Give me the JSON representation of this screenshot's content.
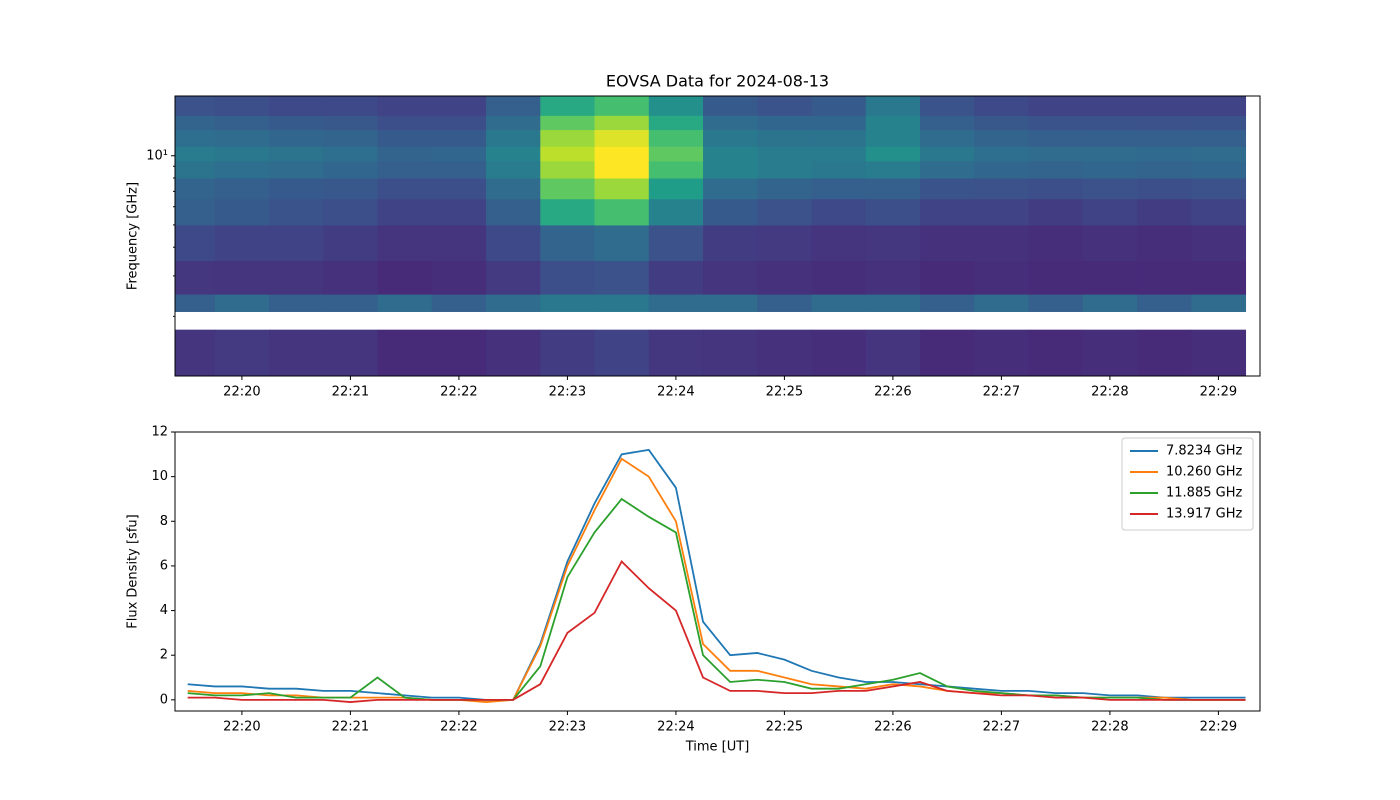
{
  "chart_data": [
    {
      "type": "heatmap",
      "title": "EOVSA Data for 2024-08-13",
      "ylabel": "Frequency [GHz]",
      "colormap": "viridis",
      "ylog": true,
      "xlim": [
        "22:19:23",
        "22:29:23"
      ],
      "xticks": [
        "22:20",
        "22:21",
        "22:22",
        "22:23",
        "22:24",
        "22:25",
        "22:26",
        "22:27",
        "22:28",
        "22:29"
      ],
      "ylim": [
        1.1,
        18.2
      ],
      "yticks": [
        {
          "value": 10,
          "label": "10¹"
        }
      ],
      "yminorticks": [
        2,
        3,
        4,
        5,
        6,
        7,
        8,
        9
      ],
      "x": [
        "22:19:30",
        "22:20:00",
        "22:20:30",
        "22:21:00",
        "22:21:30",
        "22:22:00",
        "22:22:30",
        "22:23:00",
        "22:23:30",
        "22:24:00",
        "22:24:30",
        "22:25:00",
        "22:25:30",
        "22:26:00",
        "22:26:30",
        "22:27:00",
        "22:27:30",
        "22:28:00",
        "22:28:30",
        "22:29:00"
      ],
      "y_bins": [
        1.1,
        1.75,
        2.1,
        2.5,
        3.5,
        5,
        6.5,
        8,
        9.5,
        11,
        13,
        15,
        18.2
      ],
      "zlim": [
        0,
        1
      ],
      "z": [
        [
          0.15,
          0.17,
          0.15,
          0.15,
          0.12,
          0.12,
          0.14,
          0.18,
          0.2,
          0.16,
          0.15,
          0.14,
          0.13,
          0.15,
          0.12,
          0.13,
          0.12,
          0.13,
          0.12,
          0.13
        ],
        [
          null,
          null,
          null,
          null,
          null,
          null,
          null,
          null,
          null,
          null,
          null,
          null,
          null,
          null,
          null,
          null,
          null,
          null,
          null,
          null
        ],
        [
          0.3,
          0.35,
          0.3,
          0.3,
          0.35,
          0.3,
          0.35,
          0.4,
          0.4,
          0.35,
          0.35,
          0.3,
          0.35,
          0.35,
          0.3,
          0.35,
          0.3,
          0.35,
          0.3,
          0.35
        ],
        [
          0.16,
          0.15,
          0.15,
          0.14,
          0.12,
          0.13,
          0.17,
          0.24,
          0.25,
          0.18,
          0.15,
          0.14,
          0.13,
          0.14,
          0.12,
          0.13,
          0.12,
          0.12,
          0.12,
          0.12
        ],
        [
          0.22,
          0.2,
          0.2,
          0.18,
          0.15,
          0.15,
          0.22,
          0.32,
          0.35,
          0.25,
          0.18,
          0.17,
          0.15,
          0.16,
          0.14,
          0.14,
          0.13,
          0.14,
          0.13,
          0.14
        ],
        [
          0.3,
          0.28,
          0.26,
          0.24,
          0.2,
          0.2,
          0.3,
          0.6,
          0.7,
          0.45,
          0.28,
          0.25,
          0.22,
          0.24,
          0.2,
          0.2,
          0.18,
          0.2,
          0.18,
          0.2
        ],
        [
          0.32,
          0.3,
          0.28,
          0.27,
          0.24,
          0.24,
          0.35,
          0.75,
          0.85,
          0.55,
          0.35,
          0.32,
          0.3,
          0.3,
          0.26,
          0.25,
          0.24,
          0.25,
          0.24,
          0.25
        ],
        [
          0.38,
          0.36,
          0.35,
          0.33,
          0.3,
          0.3,
          0.42,
          0.85,
          1.0,
          0.7,
          0.45,
          0.42,
          0.4,
          0.42,
          0.35,
          0.33,
          0.32,
          0.33,
          0.32,
          0.33
        ],
        [
          0.42,
          0.4,
          0.38,
          0.36,
          0.32,
          0.33,
          0.45,
          0.9,
          1.0,
          0.75,
          0.45,
          0.42,
          0.42,
          0.5,
          0.4,
          0.36,
          0.35,
          0.35,
          0.34,
          0.35
        ],
        [
          0.36,
          0.35,
          0.33,
          0.32,
          0.28,
          0.28,
          0.4,
          0.85,
          0.95,
          0.7,
          0.4,
          0.38,
          0.38,
          0.45,
          0.35,
          0.32,
          0.3,
          0.3,
          0.3,
          0.3
        ],
        [
          0.32,
          0.3,
          0.28,
          0.27,
          0.24,
          0.24,
          0.35,
          0.75,
          0.85,
          0.6,
          0.35,
          0.33,
          0.33,
          0.45,
          0.3,
          0.27,
          0.26,
          0.26,
          0.25,
          0.26
        ],
        [
          0.25,
          0.24,
          0.22,
          0.22,
          0.2,
          0.2,
          0.3,
          0.6,
          0.7,
          0.5,
          0.28,
          0.26,
          0.28,
          0.4,
          0.26,
          0.22,
          0.2,
          0.2,
          0.2,
          0.2
        ]
      ]
    },
    {
      "type": "line",
      "xlabel": "Time [UT]",
      "ylabel": "Flux Density [sfu]",
      "legend": "upper right",
      "xlim": [
        "22:19:23",
        "22:29:23"
      ],
      "xticks": [
        "22:20",
        "22:21",
        "22:22",
        "22:23",
        "22:24",
        "22:25",
        "22:26",
        "22:27",
        "22:28",
        "22:29"
      ],
      "ylim": [
        -0.5,
        12
      ],
      "yticks": [
        0,
        2,
        4,
        6,
        8,
        10,
        12
      ],
      "x": [
        "22:19:30",
        "22:19:45",
        "22:20:00",
        "22:20:15",
        "22:20:30",
        "22:20:45",
        "22:21:00",
        "22:21:15",
        "22:21:30",
        "22:21:45",
        "22:22:00",
        "22:22:15",
        "22:22:30",
        "22:22:45",
        "22:23:00",
        "22:23:15",
        "22:23:30",
        "22:23:45",
        "22:24:00",
        "22:24:15",
        "22:24:30",
        "22:24:45",
        "22:25:00",
        "22:25:15",
        "22:25:30",
        "22:25:45",
        "22:26:00",
        "22:26:15",
        "22:26:30",
        "22:26:45",
        "22:27:00",
        "22:27:15",
        "22:27:30",
        "22:27:45",
        "22:28:00",
        "22:28:15",
        "22:28:30",
        "22:28:45",
        "22:29:00",
        "22:29:15"
      ],
      "series": [
        {
          "name": "7.8234 GHz",
          "color": "#1f77b4",
          "values": [
            0.7,
            0.6,
            0.6,
            0.5,
            0.5,
            0.4,
            0.4,
            0.3,
            0.2,
            0.1,
            0.1,
            0,
            0,
            2.5,
            6.2,
            8.8,
            11.0,
            11.2,
            9.5,
            3.5,
            2.0,
            2.1,
            1.8,
            1.3,
            1.0,
            0.8,
            0.8,
            0.7,
            0.6,
            0.5,
            0.4,
            0.4,
            0.3,
            0.3,
            0.2,
            0.2,
            0.1,
            0.1,
            0.1,
            0.1
          ]
        },
        {
          "name": "10.260 GHz",
          "color": "#ff7f0e",
          "values": [
            0.4,
            0.3,
            0.3,
            0.2,
            0.2,
            0.1,
            0.1,
            0.1,
            0.1,
            0,
            0,
            -0.1,
            0,
            2.4,
            6.0,
            8.5,
            10.8,
            10.0,
            8.0,
            2.5,
            1.3,
            1.3,
            1.0,
            0.7,
            0.6,
            0.5,
            0.7,
            0.6,
            0.4,
            0.3,
            0.3,
            0.2,
            0.2,
            0.1,
            0.1,
            0.1,
            0.1,
            0,
            0,
            0
          ]
        },
        {
          "name": "11.885 GHz",
          "color": "#2ca02c",
          "values": [
            0.3,
            0.2,
            0.2,
            0.3,
            0.1,
            0.1,
            0.1,
            1.0,
            0.1,
            0,
            0,
            0,
            0,
            1.5,
            5.5,
            7.5,
            9.0,
            8.2,
            7.5,
            2.0,
            0.8,
            0.9,
            0.8,
            0.5,
            0.5,
            0.7,
            0.9,
            1.2,
            0.6,
            0.4,
            0.3,
            0.2,
            0.2,
            0.1,
            0.1,
            0.1,
            0,
            0,
            0,
            0
          ]
        },
        {
          "name": "13.917 GHz",
          "color": "#d62728",
          "values": [
            0.1,
            0.1,
            0,
            0,
            0,
            0,
            -0.1,
            0,
            0,
            0,
            0,
            0,
            0,
            0.7,
            3.0,
            3.9,
            6.2,
            5.0,
            4.0,
            1.0,
            0.4,
            0.4,
            0.3,
            0.3,
            0.4,
            0.4,
            0.6,
            0.8,
            0.4,
            0.3,
            0.2,
            0.2,
            0.1,
            0.1,
            0,
            0,
            0,
            0,
            0,
            0
          ]
        }
      ]
    }
  ]
}
